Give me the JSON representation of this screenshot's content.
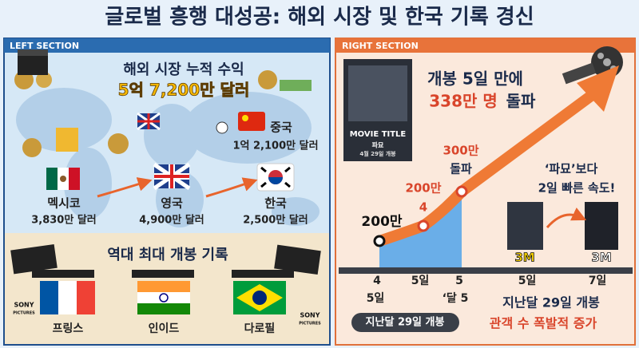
{
  "header": {
    "title": "글로벌 흥행 대성공: 해외 시장 및 한국 기록 경신"
  },
  "left": {
    "label": "LEFT SECTION",
    "revenue_title": "해외 시장 누적 수익",
    "revenue_total": "5억 7,200만 달러",
    "markets": [
      {
        "country": "중국",
        "amount": "1억 2,100만 달러"
      },
      {
        "country": "멕시코",
        "amount": "3,830만 달러"
      },
      {
        "country": "영국",
        "amount": "4,900만 달러"
      },
      {
        "country": "한국",
        "amount": "2,500만 달러"
      }
    ],
    "record_title": "역대 최대 개봉 기록",
    "record_countries": [
      "프링스",
      "인이드",
      "다로필"
    ],
    "logo": [
      "SONY",
      "PICTURES"
    ]
  },
  "right": {
    "label": "RIGHT SECTION",
    "headline": "개봉 5일 만에",
    "highlight": "338만 명",
    "highlight_suffix": "돌파",
    "poster": {
      "title": "MOVIE TITLE",
      "name": "파묘",
      "date": "4월 29일 개봉"
    },
    "milestones": [
      "200만",
      "200만",
      "4",
      "300만",
      "돌파"
    ],
    "comparison": [
      "‘파묘’보다",
      "2일 빠른 속도!"
    ],
    "badges": [
      "3M",
      "3M"
    ],
    "axis_labels": [
      "4",
      "5일",
      "5",
      "5일",
      "7일"
    ],
    "sub_labels": [
      "5일",
      "‘달 5"
    ],
    "pill": "지난달 29일 개봉",
    "footer": [
      "지난달 29일 개봉",
      "관객 수 폭발적 증가"
    ]
  }
}
